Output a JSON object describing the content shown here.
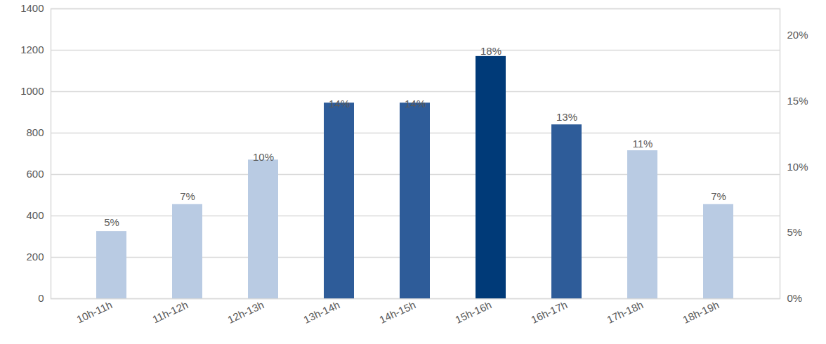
{
  "chart_data": {
    "type": "bar",
    "categories": [
      "10h-11h",
      "11h-12h",
      "12h-13h",
      "13h-14h",
      "14h-15h",
      "15h-16h",
      "16h-17h",
      "17h-18h",
      "18h-19h"
    ],
    "values": [
      325,
      455,
      670,
      945,
      945,
      1170,
      840,
      715,
      455
    ],
    "colors": [
      "#b9cbe3",
      "#b9cbe3",
      "#b9cbe3",
      "#2e5c99",
      "#2e5c99",
      "#003a78",
      "#2e5c99",
      "#b9cbe3",
      "#b9cbe3"
    ],
    "percentages": [
      5,
      7,
      10,
      14,
      14,
      18,
      13,
      11,
      7
    ],
    "percentage_labels": [
      "5%",
      "7%",
      "10%",
      "14%",
      "14%",
      "18%",
      "13%",
      "11%",
      "7%"
    ],
    "data_labels": true,
    "ylim": [
      0,
      1400
    ],
    "yticks": [
      0,
      200,
      400,
      600,
      800,
      1000,
      1200,
      1400
    ],
    "y2lim": [
      0,
      22
    ],
    "y2ticks": [
      {
        "value": 0,
        "label": "0%"
      },
      {
        "value": 5,
        "label": "5%"
      },
      {
        "value": 10,
        "label": "10%"
      },
      {
        "value": 15,
        "label": "15%"
      },
      {
        "value": 20,
        "label": "20%"
      }
    ],
    "grid": true
  }
}
